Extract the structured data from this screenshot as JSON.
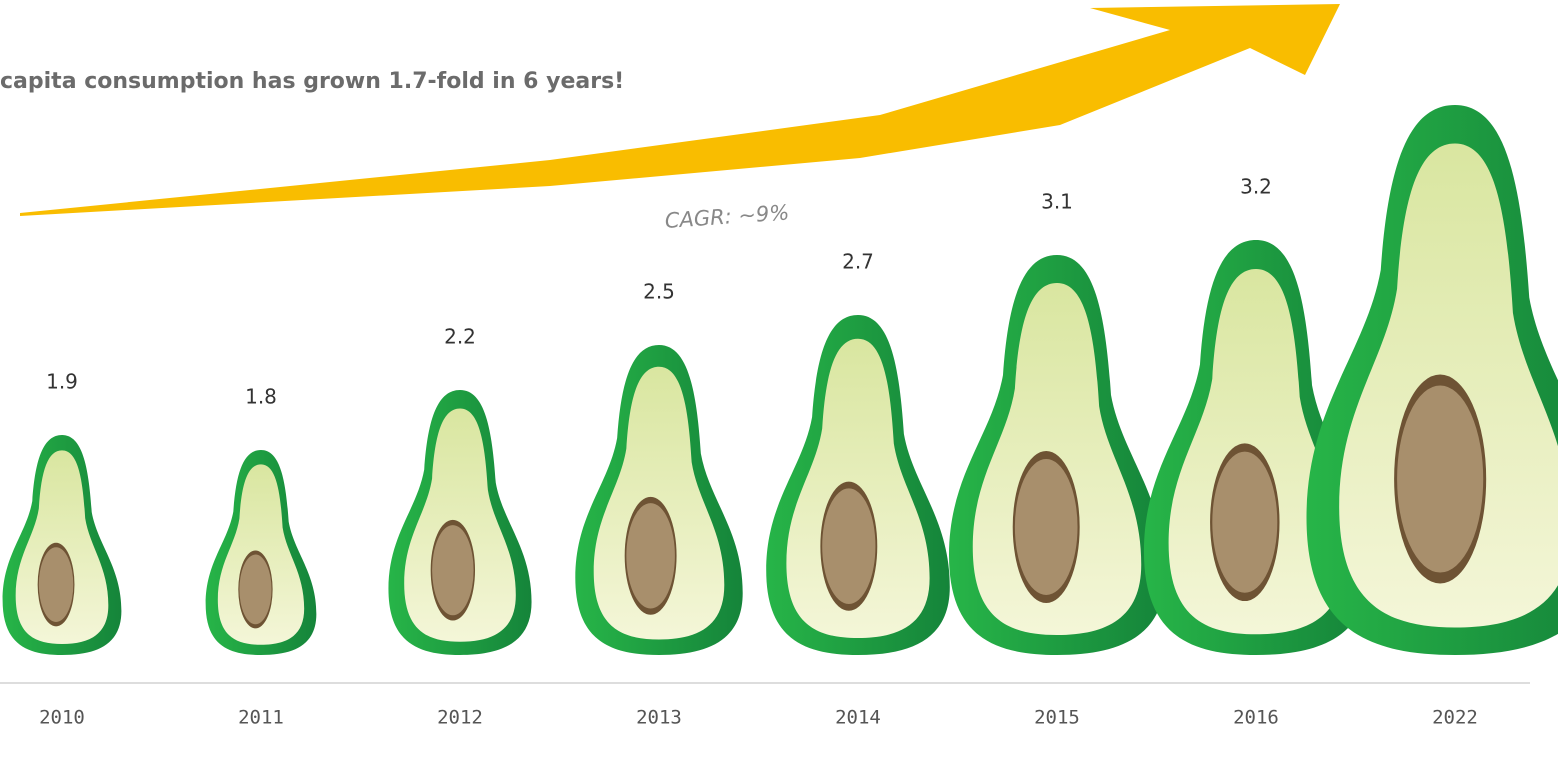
{
  "chart_data": {
    "type": "pictograph",
    "title": "capita consumption has grown 1.7-fold in 6 years!",
    "annotation": "CAGR: ~9%",
    "categories": [
      "2010",
      "2011",
      "2012",
      "2013",
      "2014",
      "2015",
      "2016",
      "2022"
    ],
    "values": [
      1.9,
      1.8,
      2.2,
      2.5,
      2.7,
      3.1,
      3.2,
      4.1
    ],
    "value_labels": [
      "1.9",
      "1.8",
      "2.2",
      "2.5",
      "2.7",
      "3.1",
      "3.2",
      null
    ],
    "color": "#1fa33a"
  }
}
